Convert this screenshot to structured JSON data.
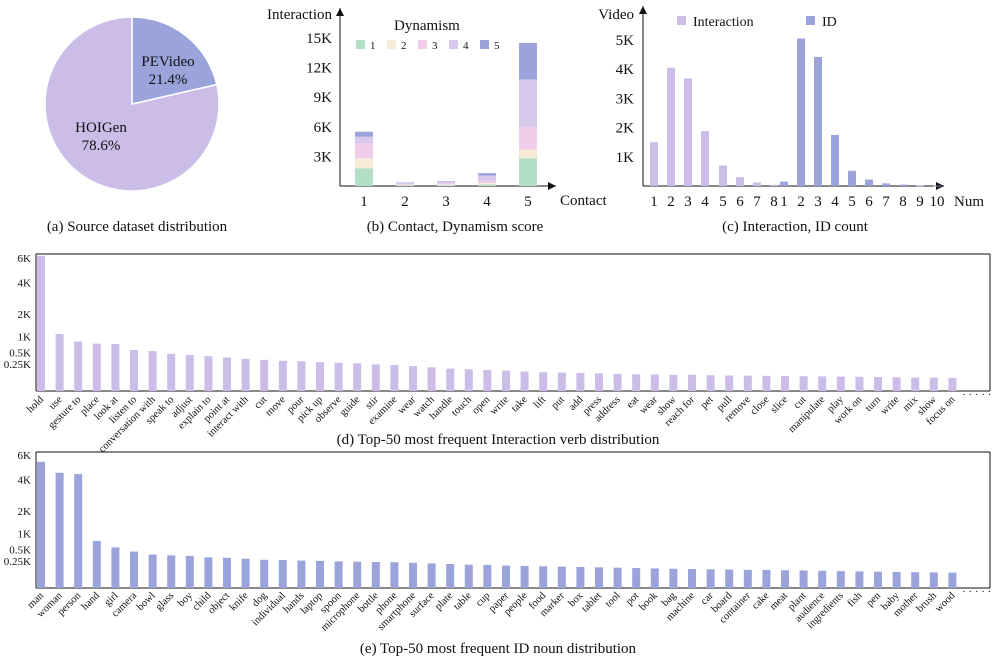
{
  "captions": {
    "a": "(a) Source dataset distribution",
    "b": "(b) Contact, Dynamism score",
    "c": "(c) Interaction, ID count",
    "d": "(d) Top-50 most frequent Interaction verb distribution",
    "e": "(e) Top-50 most frequent ID noun distribution"
  },
  "colors": {
    "lavender": "#cbbde7",
    "blue": "#9aa3da",
    "dyn1": "#b3dfc7",
    "dyn2": "#f6ecd6",
    "dyn3": "#f2cdeb",
    "dyn4": "#d8c9ec",
    "dyn5": "#9aa3da"
  },
  "chart_data": [
    {
      "id": "a",
      "type": "pie",
      "labels": [
        "HOIGen",
        "PEVideo"
      ],
      "values": [
        78.6,
        21.4
      ],
      "value_labels": [
        "78.6%",
        "21.4%"
      ],
      "colors": [
        "#cbbde7",
        "#9aa3da"
      ]
    },
    {
      "id": "b",
      "type": "bar",
      "stacked": true,
      "xlabel": "Contact",
      "ylabel": "Interaction",
      "categories": [
        "1",
        "2",
        "3",
        "4",
        "5"
      ],
      "yticks": [
        "3K",
        "6K",
        "9K",
        "12K",
        "15K"
      ],
      "ylim": [
        0,
        16500
      ],
      "legend_title": "Dynamism",
      "legend_position": "top",
      "series": [
        {
          "name": "1",
          "color": "#b3dfc7",
          "values": [
            1800,
            50,
            60,
            150,
            2800
          ]
        },
        {
          "name": "2",
          "color": "#f6ecd6",
          "values": [
            1000,
            50,
            80,
            150,
            900
          ]
        },
        {
          "name": "3",
          "color": "#f2cdeb",
          "values": [
            1500,
            100,
            120,
            250,
            2300
          ]
        },
        {
          "name": "4",
          "color": "#d8c9ec",
          "values": [
            700,
            100,
            200,
            500,
            4800
          ]
        },
        {
          "name": "5",
          "color": "#9aa3da",
          "values": [
            500,
            50,
            40,
            250,
            3700
          ]
        }
      ]
    },
    {
      "id": "c",
      "type": "bar",
      "xlabel": "Num",
      "ylabel": "Video",
      "yticks": [
        "1K",
        "2K",
        "3K",
        "4K",
        "5K"
      ],
      "ylim": [
        0,
        5100
      ],
      "legend_position": "top",
      "groups": [
        {
          "name": "Interaction",
          "color": "#cbbde7",
          "x": [
            "1",
            "2",
            "3",
            "4",
            "5",
            "6",
            "7",
            "8"
          ],
          "values": [
            1500,
            4050,
            3680,
            1880,
            700,
            300,
            120,
            40
          ]
        },
        {
          "name": "ID",
          "color": "#9aa3da",
          "x": [
            "1",
            "2",
            "3",
            "4",
            "5",
            "6",
            "7",
            "8",
            "9",
            "10"
          ],
          "values": [
            150,
            5050,
            4420,
            1750,
            520,
            220,
            90,
            50,
            20,
            10
          ]
        }
      ],
      "x_tick_labels": [
        "1",
        "2",
        "3",
        "4",
        "5",
        "6",
        "7",
        "8",
        "1",
        "2",
        "3",
        "4",
        "5",
        "6",
        "7",
        "8",
        "9",
        "10"
      ]
    },
    {
      "id": "d",
      "type": "bar",
      "scale": "sqrt",
      "yticks": [
        "0.25K",
        "0.5K",
        "1K",
        "2K",
        "4K",
        "6K"
      ],
      "ylim": [
        0,
        6000
      ],
      "color": "#cbbde7",
      "ellipsis": "· · · · ·",
      "categories": [
        "hold",
        "use",
        "gesture to",
        "place",
        "look at",
        "listen to",
        "conversation with",
        "speak to",
        "adjust",
        "explain to",
        "point at",
        "interact with",
        "cut",
        "move",
        "pour",
        "pick up",
        "observe",
        "guide",
        "stir",
        "examine",
        "wear",
        "watch",
        "handle",
        "touch",
        "open",
        "write",
        "take",
        "lift",
        "put",
        "add",
        "press",
        "address",
        "eat",
        "wear",
        "show",
        "reach for",
        "pet",
        "pull",
        "remove",
        "close",
        "slice",
        "cut",
        "manipulate",
        "play",
        "work on",
        "turn",
        "write",
        "mix",
        "show",
        "focus on"
      ],
      "values": [
        6200,
        1100,
        830,
        760,
        750,
        570,
        540,
        470,
        440,
        410,
        380,
        350,
        330,
        310,
        300,
        280,
        270,
        260,
        240,
        230,
        210,
        190,
        170,
        160,
        150,
        140,
        130,
        120,
        115,
        110,
        105,
        100,
        95,
        92,
        90,
        88,
        85,
        82,
        80,
        78,
        76,
        74,
        72,
        70,
        68,
        66,
        64,
        62,
        60,
        58
      ]
    },
    {
      "id": "e",
      "type": "bar",
      "scale": "sqrt",
      "yticks": [
        "0.25K",
        "0.5K",
        "1K",
        "2K",
        "4K",
        "6K"
      ],
      "ylim": [
        0,
        6000
      ],
      "color": "#9aa3da",
      "ellipsis": "· · · · ·",
      "categories": [
        "man",
        "woman",
        "person",
        "hand",
        "girl",
        "camera",
        "bowl",
        "glass",
        "boy",
        "child",
        "object",
        "knife",
        "dog",
        "individual",
        "hands",
        "laptop",
        "spoon",
        "microphone",
        "bottle",
        "phone",
        "smartphone",
        "surface",
        "plate",
        "table",
        "cup",
        "paper",
        "people",
        "food",
        "marker",
        "box",
        "tablet",
        "tool",
        "pot",
        "book",
        "bag",
        "machine",
        "car",
        "board",
        "container",
        "cake",
        "meat",
        "plant",
        "audience",
        "ingredients",
        "fish",
        "pen",
        "baby",
        "mother",
        "brush",
        "wood"
      ],
      "values": [
        5400,
        4500,
        4400,
        750,
        560,
        450,
        380,
        360,
        350,
        320,
        310,
        290,
        270,
        265,
        255,
        250,
        240,
        235,
        230,
        225,
        215,
        205,
        195,
        185,
        180,
        170,
        165,
        160,
        155,
        150,
        145,
        140,
        135,
        130,
        125,
        122,
        118,
        115,
        112,
        110,
        107,
        104,
        100,
        97,
        94,
        90,
        88,
        85,
        82,
        80
      ]
    }
  ]
}
